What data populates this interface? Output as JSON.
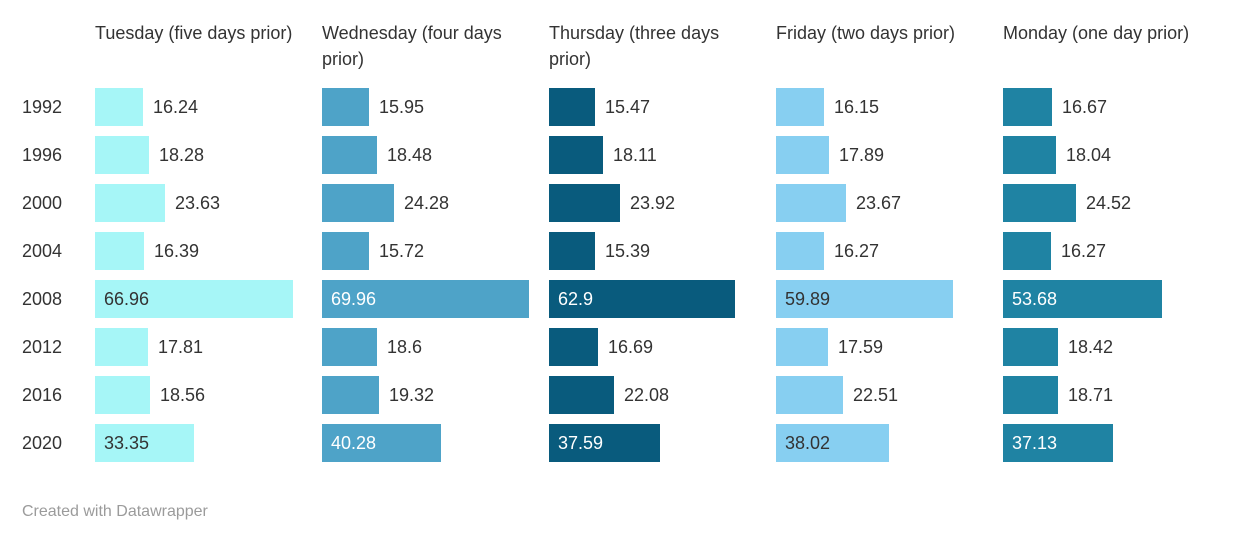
{
  "chart_data": {
    "type": "bar",
    "orientation": "horizontal",
    "title": "",
    "categories": [
      "1992",
      "1996",
      "2000",
      "2004",
      "2008",
      "2012",
      "2016",
      "2020"
    ],
    "series": [
      {
        "name": "Tuesday (five days prior)",
        "color": "#A6F6F7",
        "inside_label_color": "#333333",
        "values": [
          16.24,
          18.28,
          23.63,
          16.39,
          66.96,
          17.81,
          18.56,
          33.35
        ]
      },
      {
        "name": "Wednesday (four days prior)",
        "color": "#4EA3C8",
        "inside_label_color": "#FFFFFF",
        "values": [
          15.95,
          18.48,
          24.28,
          15.72,
          69.96,
          18.6,
          19.32,
          40.28
        ]
      },
      {
        "name": "Thursday (three days prior)",
        "color": "#095B7D",
        "inside_label_color": "#FFFFFF",
        "values": [
          15.47,
          18.11,
          23.92,
          15.39,
          62.9,
          16.69,
          22.08,
          37.59
        ]
      },
      {
        "name": "Friday (two days prior)",
        "color": "#87CFF1",
        "inside_label_color": "#333333",
        "values": [
          16.15,
          17.89,
          23.67,
          16.27,
          59.89,
          17.59,
          22.51,
          38.02
        ]
      },
      {
        "name": "Monday (one day prior)",
        "color": "#1F83A3",
        "inside_label_color": "#FFFFFF",
        "values": [
          16.67,
          18.04,
          24.52,
          16.27,
          53.68,
          18.42,
          18.71,
          37.13
        ]
      }
    ],
    "value_label_color": "#333333",
    "xlim": [
      0,
      70
    ],
    "grid": false,
    "legend": "column-headers"
  },
  "footer": {
    "credit": "Created with Datawrapper"
  }
}
